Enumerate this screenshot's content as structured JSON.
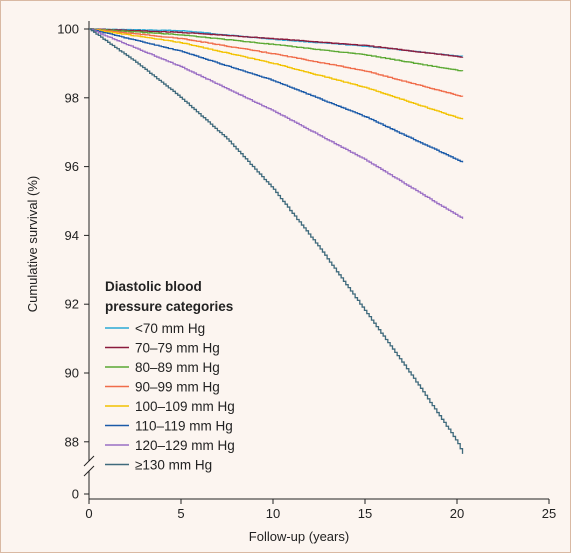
{
  "chart_data": {
    "type": "line",
    "xlabel": "Follow-up (years)",
    "ylabel": "Cumulative survival (%)",
    "xlim": [
      0,
      25
    ],
    "ylim": [
      87.5,
      100
    ],
    "y_axis_break": true,
    "x_ticks": [
      0,
      5,
      10,
      15,
      20,
      25
    ],
    "y_ticks": [
      0,
      88,
      90,
      92,
      94,
      96,
      98,
      100
    ],
    "legend_title": "Diastolic blood pressure categories",
    "legend_title_lines": [
      "Diastolic blood",
      "pressure categories"
    ],
    "legend_position": "lower-left",
    "grid": false,
    "series": [
      {
        "name": "<70 mm Hg",
        "color": "#2aa9d6",
        "x": [
          0,
          5,
          10,
          15,
          20.3
        ],
        "y": [
          100,
          99.95,
          99.7,
          99.5,
          99.2
        ]
      },
      {
        "name": "70–79 mm Hg",
        "color": "#8b1a3c",
        "x": [
          0,
          5,
          10,
          15,
          20.3
        ],
        "y": [
          100,
          99.9,
          99.72,
          99.52,
          99.18
        ]
      },
      {
        "name": "80–89 mm Hg",
        "color": "#5aa832",
        "x": [
          0,
          5,
          10,
          15,
          20.3
        ],
        "y": [
          100,
          99.83,
          99.55,
          99.25,
          98.77
        ]
      },
      {
        "name": "90–99 mm Hg",
        "color": "#f06c4a",
        "x": [
          0,
          5,
          10,
          15,
          20.3
        ],
        "y": [
          100,
          99.72,
          99.28,
          98.78,
          98.03
        ]
      },
      {
        "name": "100–109 mm Hg",
        "color": "#f2c200",
        "x": [
          0,
          5,
          10,
          15,
          20.3
        ],
        "y": [
          100,
          99.6,
          99.0,
          98.3,
          97.37
        ]
      },
      {
        "name": "110–119 mm Hg",
        "color": "#1a5aa8",
        "x": [
          0,
          5,
          10,
          15,
          20.3
        ],
        "y": [
          100,
          99.35,
          98.5,
          97.45,
          96.12
        ]
      },
      {
        "name": "120–129 mm Hg",
        "color": "#9a6ec4",
        "x": [
          0,
          5,
          10,
          15,
          20.3
        ],
        "y": [
          100,
          98.9,
          97.62,
          96.2,
          94.48
        ]
      },
      {
        "name": "≥130 mm Hg",
        "color": "#3f6a7c",
        "x": [
          0,
          2.5,
          5,
          7.5,
          10,
          12.5,
          15,
          17.5,
          20,
          20.3
        ],
        "y": [
          100,
          99.05,
          98.0,
          96.8,
          95.35,
          93.65,
          91.8,
          89.95,
          88.0,
          87.65
        ]
      }
    ]
  }
}
